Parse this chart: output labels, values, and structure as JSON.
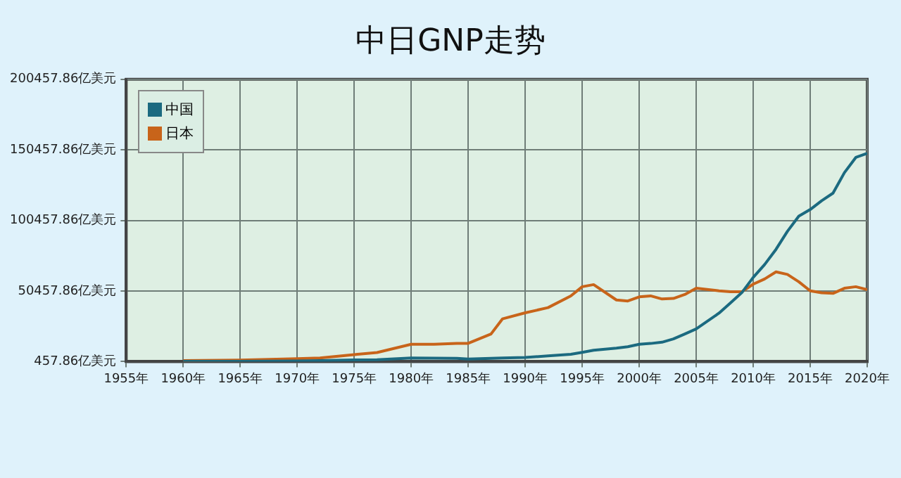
{
  "chart_data": {
    "type": "line",
    "title": "中日GNP走势",
    "x": [
      1960,
      1965,
      1970,
      1972,
      1975,
      1977,
      1980,
      1982,
      1984,
      1985,
      1987,
      1988,
      1990,
      1992,
      1994,
      1995,
      1996,
      1998,
      1999,
      2000,
      2001,
      2002,
      2003,
      2004,
      2005,
      2007,
      2008,
      2009,
      2010,
      2011,
      2012,
      2013,
      2014,
      2015,
      2016,
      2017,
      2018,
      2019,
      2020
    ],
    "series": [
      {
        "name": "中国",
        "color": "#1b6a80",
        "values": [
          600,
          700,
          900,
          1100,
          1600,
          1800,
          3000,
          2900,
          2800,
          2300,
          2800,
          3000,
          3400,
          4500,
          5600,
          7000,
          8500,
          10000,
          11000,
          12700,
          13300,
          14200,
          16500,
          20000,
          23600,
          34800,
          42000,
          49300,
          60100,
          69200,
          80000,
          92700,
          103500,
          108200,
          114400,
          119800,
          134300,
          145100,
          148000
        ]
      },
      {
        "name": "日本",
        "color": "#c8641a",
        "values": [
          1200,
          1500,
          2500,
          3000,
          5400,
          6900,
          12700,
          12700,
          13400,
          13400,
          20000,
          30700,
          35000,
          38700,
          47000,
          53500,
          55000,
          44100,
          43400,
          46300,
          47000,
          44800,
          45200,
          48000,
          52400,
          50600,
          50000,
          49900,
          55300,
          59000,
          64000,
          62200,
          57000,
          50600,
          49200,
          48800,
          52400,
          53500,
          51400
        ]
      }
    ],
    "xlim": [
      1955,
      2020
    ],
    "xticks": [
      {
        "value": 1955,
        "label": "1955年"
      },
      {
        "value": 1960,
        "label": "1960年"
      },
      {
        "value": 1965,
        "label": "1965年"
      },
      {
        "value": 1970,
        "label": "1970年"
      },
      {
        "value": 1975,
        "label": "1975年"
      },
      {
        "value": 1980,
        "label": "1980年"
      },
      {
        "value": 1985,
        "label": "1985年"
      },
      {
        "value": 1990,
        "label": "1990年"
      },
      {
        "value": 1995,
        "label": "1995年"
      },
      {
        "value": 2000,
        "label": "2000年"
      },
      {
        "value": 2005,
        "label": "2005年"
      },
      {
        "value": 2010,
        "label": "2010年"
      },
      {
        "value": 2015,
        "label": "2015年"
      },
      {
        "value": 2020,
        "label": "2020年"
      }
    ],
    "ylim": [
      457.86,
      200457.86
    ],
    "yticks": [
      {
        "value": 457.86,
        "label": "457.86亿美元"
      },
      {
        "value": 50457.86,
        "label": "50457.86亿美元"
      },
      {
        "value": 100457.86,
        "label": "100457.86亿美元"
      },
      {
        "value": 150457.86,
        "label": "150457.86亿美元"
      },
      {
        "value": 200457.86,
        "label": "200457.86亿美元"
      }
    ],
    "grid": true,
    "legend": "top left",
    "marker": "none",
    "line_style": "solid"
  }
}
